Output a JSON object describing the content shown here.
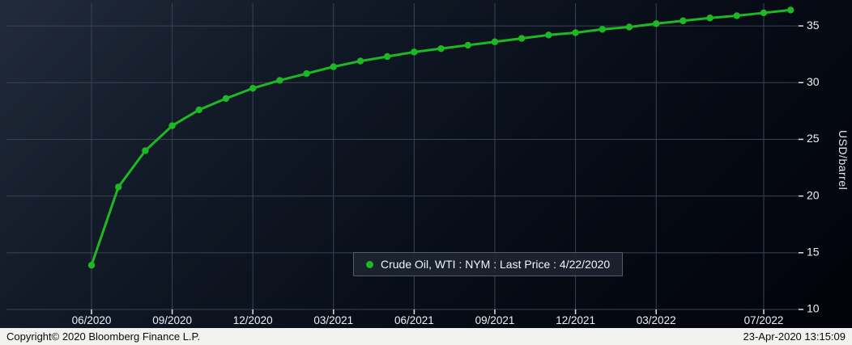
{
  "chart_data": {
    "type": "line",
    "title": "",
    "series": [
      {
        "name": "Crude Oil, WTI : NYM : Last Price : 4/22/2020",
        "values": [
          13.9,
          20.8,
          24.0,
          26.2,
          27.6,
          28.6,
          29.5,
          30.2,
          30.8,
          31.4,
          31.9,
          32.3,
          32.7,
          33.0,
          33.3,
          33.6,
          33.9,
          34.2,
          34.4,
          34.7,
          34.9,
          35.2,
          35.45,
          35.7,
          35.9,
          36.15,
          36.4
        ]
      }
    ],
    "categories": [
      "06/2020",
      "07/2020",
      "08/2020",
      "09/2020",
      "10/2020",
      "11/2020",
      "12/2020",
      "01/2021",
      "02/2021",
      "03/2021",
      "04/2021",
      "05/2021",
      "06/2021",
      "07/2021",
      "08/2021",
      "09/2021",
      "10/2021",
      "11/2021",
      "12/2021",
      "01/2022",
      "02/2022",
      "03/2022",
      "04/2022",
      "05/2022",
      "06/2022",
      "07/2022",
      "08/2022"
    ],
    "xlabel": "",
    "ylabel": "USD/barrel",
    "ylim": [
      10,
      37
    ],
    "yticks": [
      10,
      15,
      20,
      25,
      30,
      35
    ],
    "xticks": [
      {
        "label": "06/2020",
        "index": 0
      },
      {
        "label": "09/2020",
        "index": 3
      },
      {
        "label": "12/2020",
        "index": 6
      },
      {
        "label": "03/2021",
        "index": 9
      },
      {
        "label": "06/2021",
        "index": 12
      },
      {
        "label": "09/2021",
        "index": 15
      },
      {
        "label": "12/2021",
        "index": 18
      },
      {
        "label": "03/2022",
        "index": 21
      },
      {
        "label": "07/2022",
        "index": 25
      }
    ],
    "grid": true,
    "legend_position": "bottom-center",
    "line_color": "#1db823",
    "marker": "circle"
  },
  "legend": {
    "label": "Crude Oil, WTI : NYM : Last Price : 4/22/2020"
  },
  "axis": {
    "y_label": "USD/barrel"
  },
  "footer": {
    "copyright": "Copyright© 2020 Bloomberg Finance L.P.",
    "timestamp": "23-Apr-2020 13:15:09"
  },
  "colors": {
    "line": "#1db823",
    "grid": "#3a4356",
    "tick_text": "#eef1f5",
    "footer_bg": "#f2f2f0"
  }
}
